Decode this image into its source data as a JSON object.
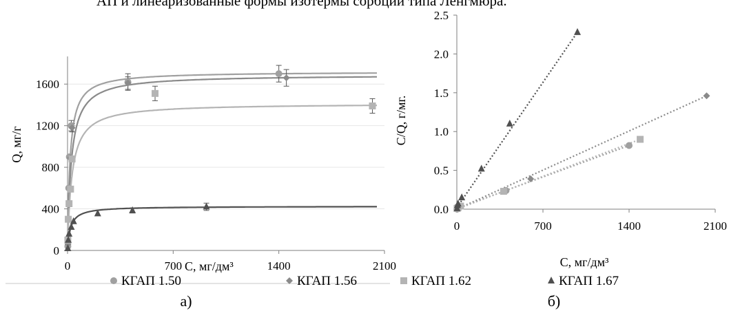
{
  "header_text": "АП и линеаризованные формы изотермы сорбции типа Ленгмюра.",
  "colors": {
    "KGAP_150": "#a0a0a0",
    "KGAP_156": "#8a8a8a",
    "KGAP_162": "#b4b4b4",
    "KGAP_167": "#505050",
    "axis": "#7f7f7f",
    "separator": "#c8c8c8"
  },
  "legend": [
    {
      "label": "КГАП 1.50",
      "marker": "circle"
    },
    {
      "label": "КГАП 1.56",
      "marker": "diamond"
    },
    {
      "label": "КГАП 1.62",
      "marker": "square"
    },
    {
      "label": "КГАП 1.67",
      "marker": "triangle"
    }
  ],
  "chart_data": [
    {
      "panel_label": "а)",
      "type": "scatter",
      "xlabel": "С, мг/дм³",
      "ylabel": "Q, мг/г",
      "xlim": [
        0,
        2100
      ],
      "ylim": [
        0,
        1800
      ],
      "x_ticks": [
        0,
        700,
        1400,
        2100
      ],
      "y_ticks": [
        0,
        400,
        800,
        1200,
        1600
      ],
      "x_tick_labels": [
        "0",
        "700",
        "1400",
        "2100"
      ],
      "y_tick_labels": [
        "0",
        "400",
        "800",
        "1200",
        "1600"
      ],
      "series": [
        {
          "name": "КГАП 1.50",
          "marker": "circle",
          "points": [
            [
              2,
              40
            ],
            [
              5,
              300
            ],
            [
              8,
              600
            ],
            [
              12,
              900
            ],
            [
              25,
              1200
            ],
            [
              400,
              1620
            ],
            [
              1400,
              1700
            ]
          ],
          "errors": [
            0,
            0,
            0,
            0,
            50,
            80,
            80
          ],
          "fit": {
            "qmax": 1720,
            "k": 0.06
          }
        },
        {
          "name": "КГАП 1.56",
          "marker": "diamond",
          "points": [
            [
              3,
              60
            ],
            [
              10,
              440
            ],
            [
              20,
              890
            ],
            [
              30,
              1180
            ],
            [
              400,
              1610
            ],
            [
              1450,
              1660
            ]
          ],
          "errors": [
            0,
            0,
            0,
            40,
            60,
            80
          ],
          "fit": {
            "qmax": 1690,
            "k": 0.04
          }
        },
        {
          "name": "КГАП 1.62",
          "marker": "square",
          "points": [
            [
              2,
              100
            ],
            [
              5,
              300
            ],
            [
              10,
              450
            ],
            [
              20,
              590
            ],
            [
              30,
              880
            ],
            [
              580,
              1510
            ],
            [
              2020,
              1390
            ]
          ],
          "errors": [
            0,
            0,
            0,
            0,
            0,
            70,
            70
          ],
          "fit": {
            "qmax": 1415,
            "k": 0.035
          }
        },
        {
          "name": "КГАП 1.67",
          "marker": "triangle",
          "points": [
            [
              2,
              20
            ],
            [
              5,
              100
            ],
            [
              10,
              160
            ],
            [
              25,
              225
            ],
            [
              40,
              280
            ],
            [
              200,
              355
            ],
            [
              430,
              385
            ],
            [
              920,
              420
            ]
          ],
          "errors": [
            0,
            0,
            0,
            0,
            0,
            0,
            25,
            35
          ],
          "fit": {
            "qmax": 425,
            "k": 0.05
          }
        }
      ]
    },
    {
      "panel_label": "б)",
      "type": "scatter",
      "xlabel": "С, мг/дм³",
      "ylabel": "С/Q, г/мг.",
      "xlim": [
        0,
        2100
      ],
      "ylim": [
        0,
        2.5
      ],
      "x_ticks": [
        0,
        700,
        1400,
        2100
      ],
      "y_ticks": [
        0,
        0.5,
        1.0,
        1.5,
        2.0,
        2.5
      ],
      "x_tick_labels": [
        "0",
        "700",
        "1400",
        "2100"
      ],
      "y_tick_labels": [
        "0.0",
        "0.5",
        "1.0",
        "1.5",
        "2.0",
        "2.5"
      ],
      "series": [
        {
          "name": "КГАП 1.50",
          "marker": "circle",
          "points": [
            [
              2,
              0.0
            ],
            [
              10,
              0.02
            ],
            [
              20,
              0.03
            ],
            [
              400,
              0.24
            ],
            [
              1400,
              0.82
            ]
          ],
          "fit_line": [
            [
              0,
              0.01
            ],
            [
              1400,
              0.82
            ]
          ]
        },
        {
          "name": "КГАП 1.56",
          "marker": "diamond",
          "points": [
            [
              3,
              0.0
            ],
            [
              10,
              0.02
            ],
            [
              30,
              0.03
            ],
            [
              600,
              0.39
            ],
            [
              2030,
              1.46
            ]
          ],
          "fit_line": [
            [
              0,
              0.0
            ],
            [
              2030,
              1.46
            ]
          ]
        },
        {
          "name": "КГАП 1.62",
          "marker": "square",
          "points": [
            [
              2,
              0.01
            ],
            [
              10,
              0.02
            ],
            [
              30,
              0.04
            ],
            [
              380,
              0.23
            ],
            [
              1490,
              0.9
            ]
          ],
          "fit_line": [
            [
              0,
              0.0
            ],
            [
              1490,
              0.9
            ]
          ]
        },
        {
          "name": "КГАП 1.67",
          "marker": "triangle",
          "points": [
            [
              2,
              0.01
            ],
            [
              5,
              0.05
            ],
            [
              10,
              0.07
            ],
            [
              40,
              0.15
            ],
            [
              200,
              0.52
            ],
            [
              430,
              1.1
            ],
            [
              980,
              2.28
            ]
          ],
          "fit_line": [
            [
              0,
              0.02
            ],
            [
              980,
              2.28
            ]
          ]
        }
      ]
    }
  ]
}
